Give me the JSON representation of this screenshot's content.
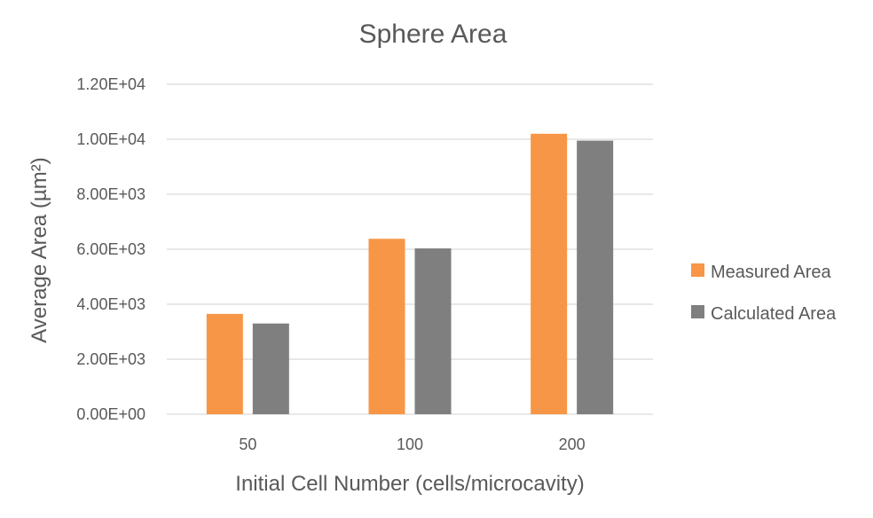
{
  "chart_data": {
    "type": "bar",
    "title": "Sphere Area",
    "xlabel": "Initial Cell Number (cells/microcavity)",
    "ylabel": "Average Area (µm²)",
    "categories": [
      "50",
      "100",
      "200"
    ],
    "series": [
      {
        "name": "Measured Area",
        "values": [
          3650,
          6380,
          10200
        ],
        "color": "#F79646"
      },
      {
        "name": "Calculated Area",
        "values": [
          3300,
          6030,
          9950
        ],
        "color": "#7F7F7F"
      }
    ],
    "ylim": [
      0,
      12000
    ],
    "yticks": [
      0,
      2000,
      4000,
      6000,
      8000,
      10000,
      12000
    ],
    "ytick_labels": [
      "0.00E+00",
      "2.00E+03",
      "4.00E+03",
      "6.00E+03",
      "8.00E+03",
      "1.00E+04",
      "1.20E+04"
    ],
    "grid": true,
    "legend_position": "right",
    "gridline_color": "#D9D9D9",
    "text_color": "#595959"
  }
}
